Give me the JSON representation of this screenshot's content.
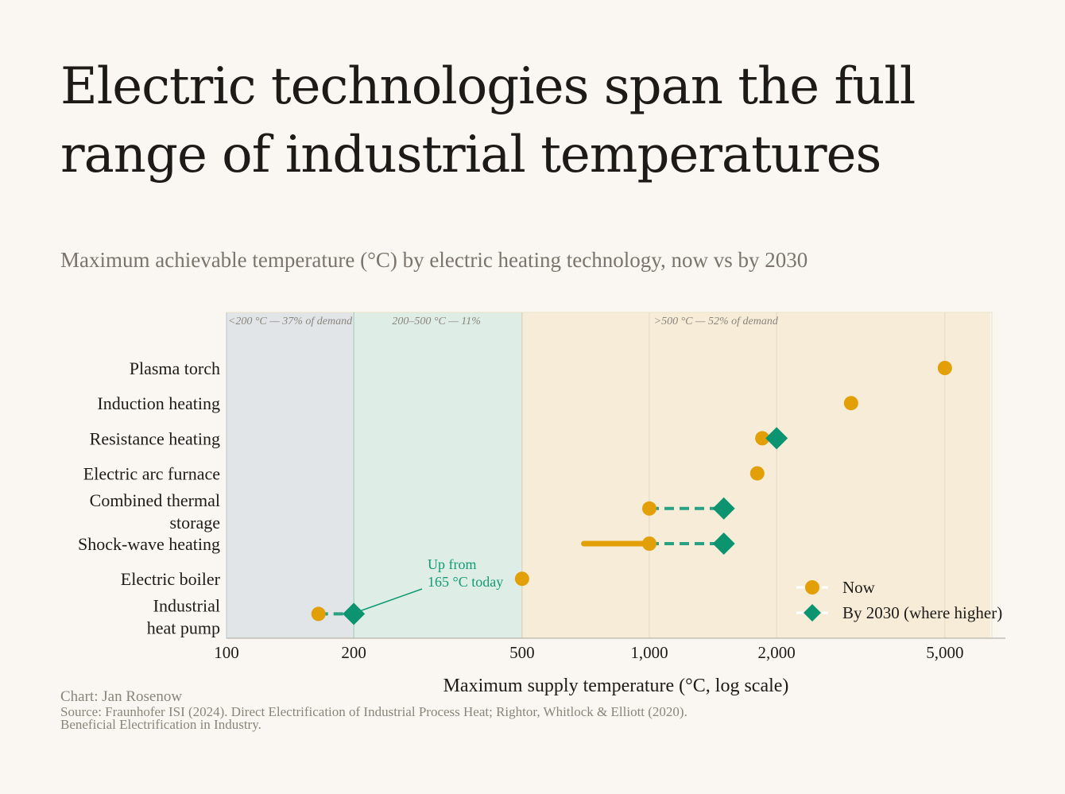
{
  "title": "Electric technologies span the full range of industrial temperatures",
  "subtitle": "Maximum achievable temperature (°C) by electric heating technology, now vs by 2030",
  "footer": {
    "credit": "Chart: Jan Rosenow",
    "source": "Source: Fraunhofer ISI (2024). Direct Electrification of Industrial Process Heat; Rightor, Whitlock & Elliott (2020). Beneficial Electrification in Industry."
  },
  "colors": {
    "now": "#e39f08",
    "by2030": "#0c9370",
    "band_low": "#e1e5e8",
    "band_mid": "#deede6",
    "band_high": "#f7ecd8"
  },
  "chart_data": {
    "type": "scatter",
    "xscale": "log",
    "xlim": [
      100,
      6400
    ],
    "xlabel": "Maximum supply temperature (°C, log scale)",
    "xticks": [
      100,
      200,
      500,
      1000,
      2000,
      5000
    ],
    "xtick_labels": [
      "100",
      "200",
      "500",
      "1,000",
      "2,000",
      "5,000"
    ],
    "bands": [
      {
        "from": 100,
        "to": 200,
        "label": "<200 °C — 37% of demand"
      },
      {
        "from": 200,
        "to": 500,
        "label": "200–500 °C — 11%"
      },
      {
        "from": 500,
        "to": 6400,
        "label": ">500 °C — 52% of demand"
      }
    ],
    "categories": [
      {
        "label": [
          "Plasma torch"
        ],
        "now": 5000,
        "by2030": null,
        "range_low": null
      },
      {
        "label": [
          "Induction heating"
        ],
        "now": 3000,
        "by2030": null,
        "range_low": null
      },
      {
        "label": [
          "Resistance heating"
        ],
        "now": 1850,
        "by2030": 2000,
        "range_low": null
      },
      {
        "label": [
          "Electric arc furnace"
        ],
        "now": 1800,
        "by2030": null,
        "range_low": null
      },
      {
        "label": [
          "Combined thermal",
          "storage"
        ],
        "now": 1000,
        "by2030": 1500,
        "range_low": null
      },
      {
        "label": [
          "Shock-wave heating"
        ],
        "now": 1000,
        "by2030": 1500,
        "range_low": 700
      },
      {
        "label": [
          "Electric boiler"
        ],
        "now": 500,
        "by2030": null,
        "range_low": null
      },
      {
        "label": [
          "Industrial",
          "heat pump"
        ],
        "now": 165,
        "by2030": 200,
        "range_low": null
      }
    ],
    "legend": {
      "position": "bottom-right",
      "now": "Now",
      "by2030": "By 2030 (where higher)"
    },
    "annotations": [
      {
        "text": [
          "Up from",
          "165 °C today"
        ],
        "target_category": "Industrial heat pump",
        "target_value": 200
      }
    ]
  }
}
